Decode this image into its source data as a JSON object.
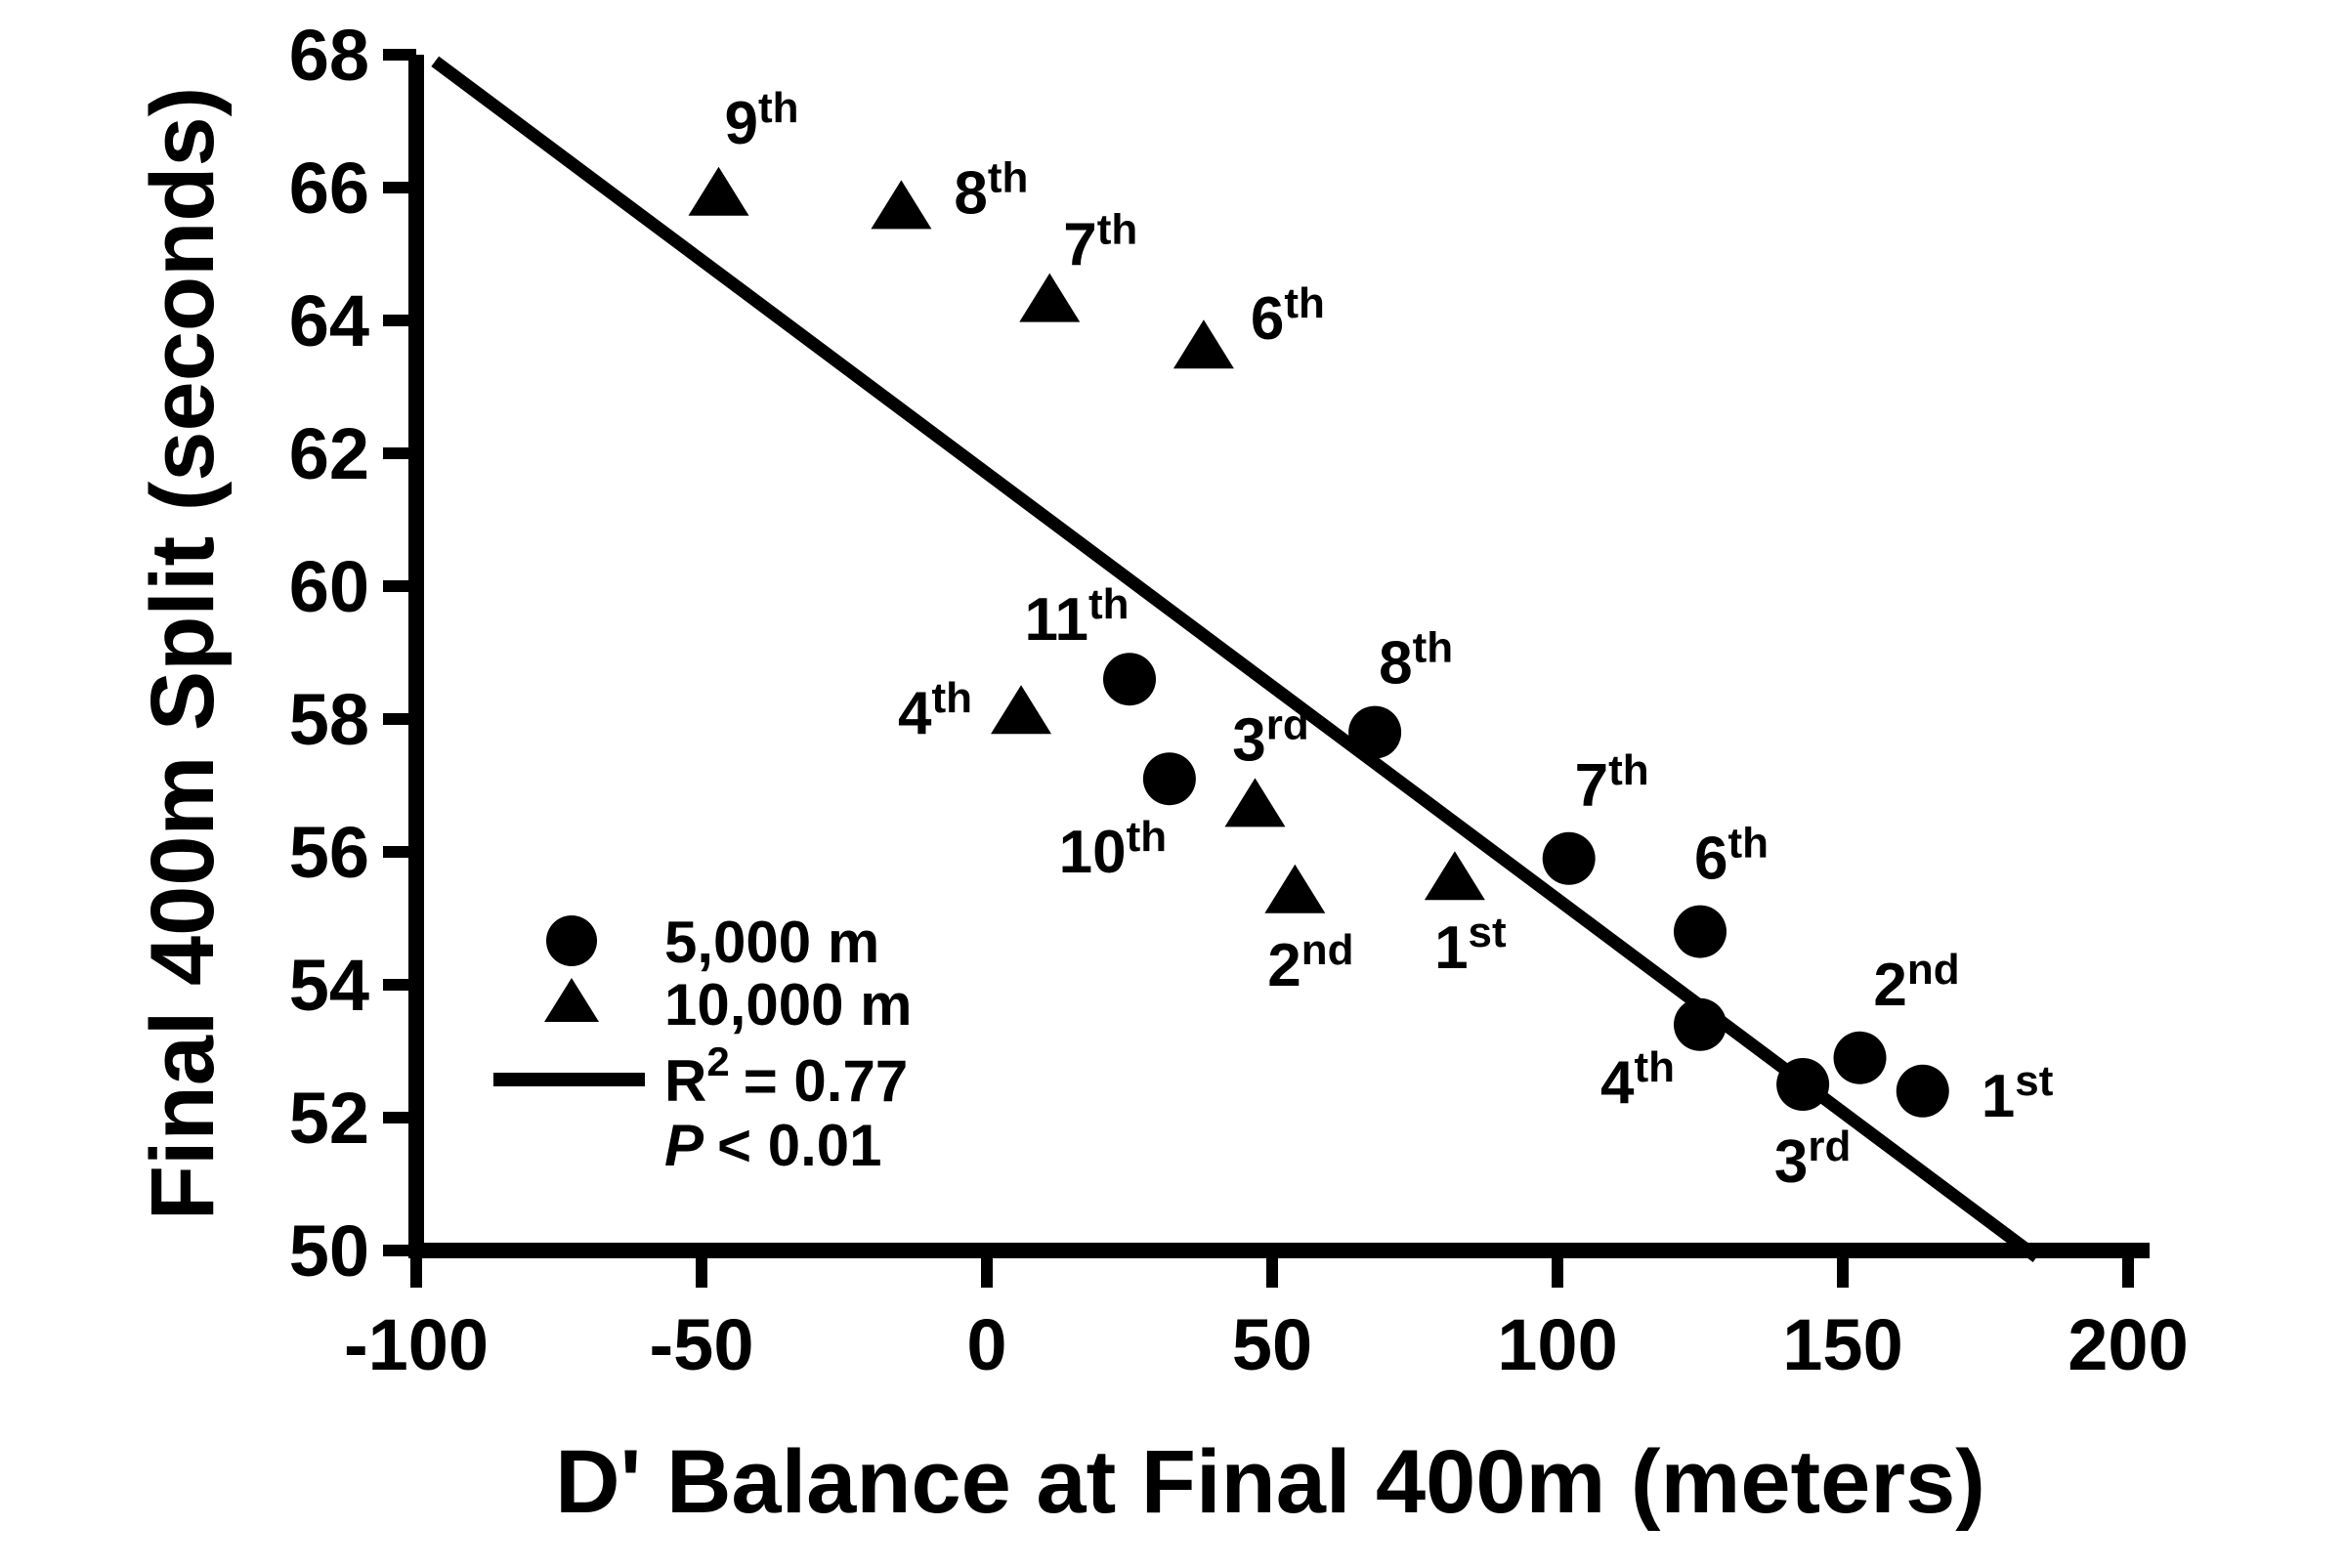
{
  "figure": {
    "background_color": "#ffffff",
    "ink_color": "#000000"
  },
  "chart_data": {
    "type": "scatter",
    "title": "",
    "xlabel": "D' Balance at Final 400m (meters)",
    "ylabel": "Final 400m Split (seconds)",
    "xlim": [
      -100,
      200
    ],
    "ylim": [
      50,
      68
    ],
    "x_ticks": [
      -100,
      -50,
      0,
      50,
      100,
      150,
      200
    ],
    "y_ticks": [
      50,
      52,
      54,
      56,
      58,
      60,
      62,
      64,
      66,
      68
    ],
    "grid": false,
    "legend": {
      "position": "lower-left",
      "items": [
        "5,000 m",
        "10,000 m",
        "R² = 0.77",
        "P < 0.01"
      ],
      "label_5000": "5,000 m",
      "label_10000": "10,000 m"
    },
    "series": [
      {
        "name": "5,000 m",
        "marker": "circle",
        "points": [
          {
            "x": 164,
            "y": 52.4,
            "rank": "1",
            "suffix": "st",
            "label_dx": 60,
            "label_dy": 26,
            "anchor": "start"
          },
          {
            "x": 153,
            "y": 52.9,
            "rank": "2",
            "suffix": "nd",
            "label_dx": 58,
            "label_dy": -54,
            "anchor": "middle"
          },
          {
            "x": 143,
            "y": 52.5,
            "rank": "3",
            "suffix": "rd",
            "label_dx": 10,
            "label_dy": 100,
            "anchor": "middle"
          },
          {
            "x": 125,
            "y": 53.4,
            "rank": "4",
            "suffix": "th",
            "label_dx": -64,
            "label_dy": 80,
            "anchor": "middle"
          },
          {
            "x": 125,
            "y": 54.8,
            "rank": "6",
            "suffix": "th",
            "label_dx": 32,
            "label_dy": -54,
            "anchor": "middle"
          },
          {
            "x": 102,
            "y": 55.9,
            "rank": "7",
            "suffix": "th",
            "label_dx": 44,
            "label_dy": -54,
            "anchor": "middle"
          },
          {
            "x": 68,
            "y": 57.8,
            "rank": "8",
            "suffix": "th",
            "label_dx": 42,
            "label_dy": -50,
            "anchor": "middle"
          },
          {
            "x": 32,
            "y": 57.1,
            "rank": "10",
            "suffix": "th",
            "label_dx": -58,
            "label_dy": 96,
            "anchor": "middle"
          },
          {
            "x": 25,
            "y": 58.6,
            "rank": "11",
            "suffix": "th",
            "label_dx": -54,
            "label_dy": -40,
            "anchor": "middle"
          }
        ]
      },
      {
        "name": "10,000 m",
        "marker": "triangle",
        "points": [
          {
            "x": 82,
            "y": 55.6,
            "rank": "1",
            "suffix": "st",
            "label_dx": 16,
            "label_dy": 92,
            "anchor": "middle"
          },
          {
            "x": 54,
            "y": 55.4,
            "rank": "2",
            "suffix": "nd",
            "label_dx": 16,
            "label_dy": 96,
            "anchor": "middle"
          },
          {
            "x": 47,
            "y": 56.7,
            "rank": "3",
            "suffix": "rd",
            "label_dx": 16,
            "label_dy": -46,
            "anchor": "middle"
          },
          {
            "x": 6,
            "y": 58.1,
            "rank": "4",
            "suffix": "th",
            "label_dx": -50,
            "label_dy": 22,
            "anchor": "end"
          },
          {
            "x": 38,
            "y": 63.6,
            "rank": "6",
            "suffix": "th",
            "label_dx": 48,
            "label_dy": -8,
            "anchor": "start"
          },
          {
            "x": 11,
            "y": 64.3,
            "rank": "7",
            "suffix": "th",
            "label_dx": 52,
            "label_dy": -36,
            "anchor": "middle"
          },
          {
            "x": -15,
            "y": 65.7,
            "rank": "8",
            "suffix": "th",
            "label_dx": 54,
            "label_dy": 6,
            "anchor": "start"
          },
          {
            "x": -47,
            "y": 65.9,
            "rank": "9",
            "suffix": "th",
            "label_dx": 44,
            "label_dy": -52,
            "anchor": "middle"
          }
        ]
      }
    ],
    "regression": {
      "r2_base": "R",
      "r2_sup": "2",
      "r2_rest": "= 0.77",
      "p_italic": "P",
      "p_rest": "< 0.01",
      "line": {
        "x1": -96.7,
        "y1": 67.9,
        "x2": 184,
        "y2": 49.9
      }
    }
  }
}
